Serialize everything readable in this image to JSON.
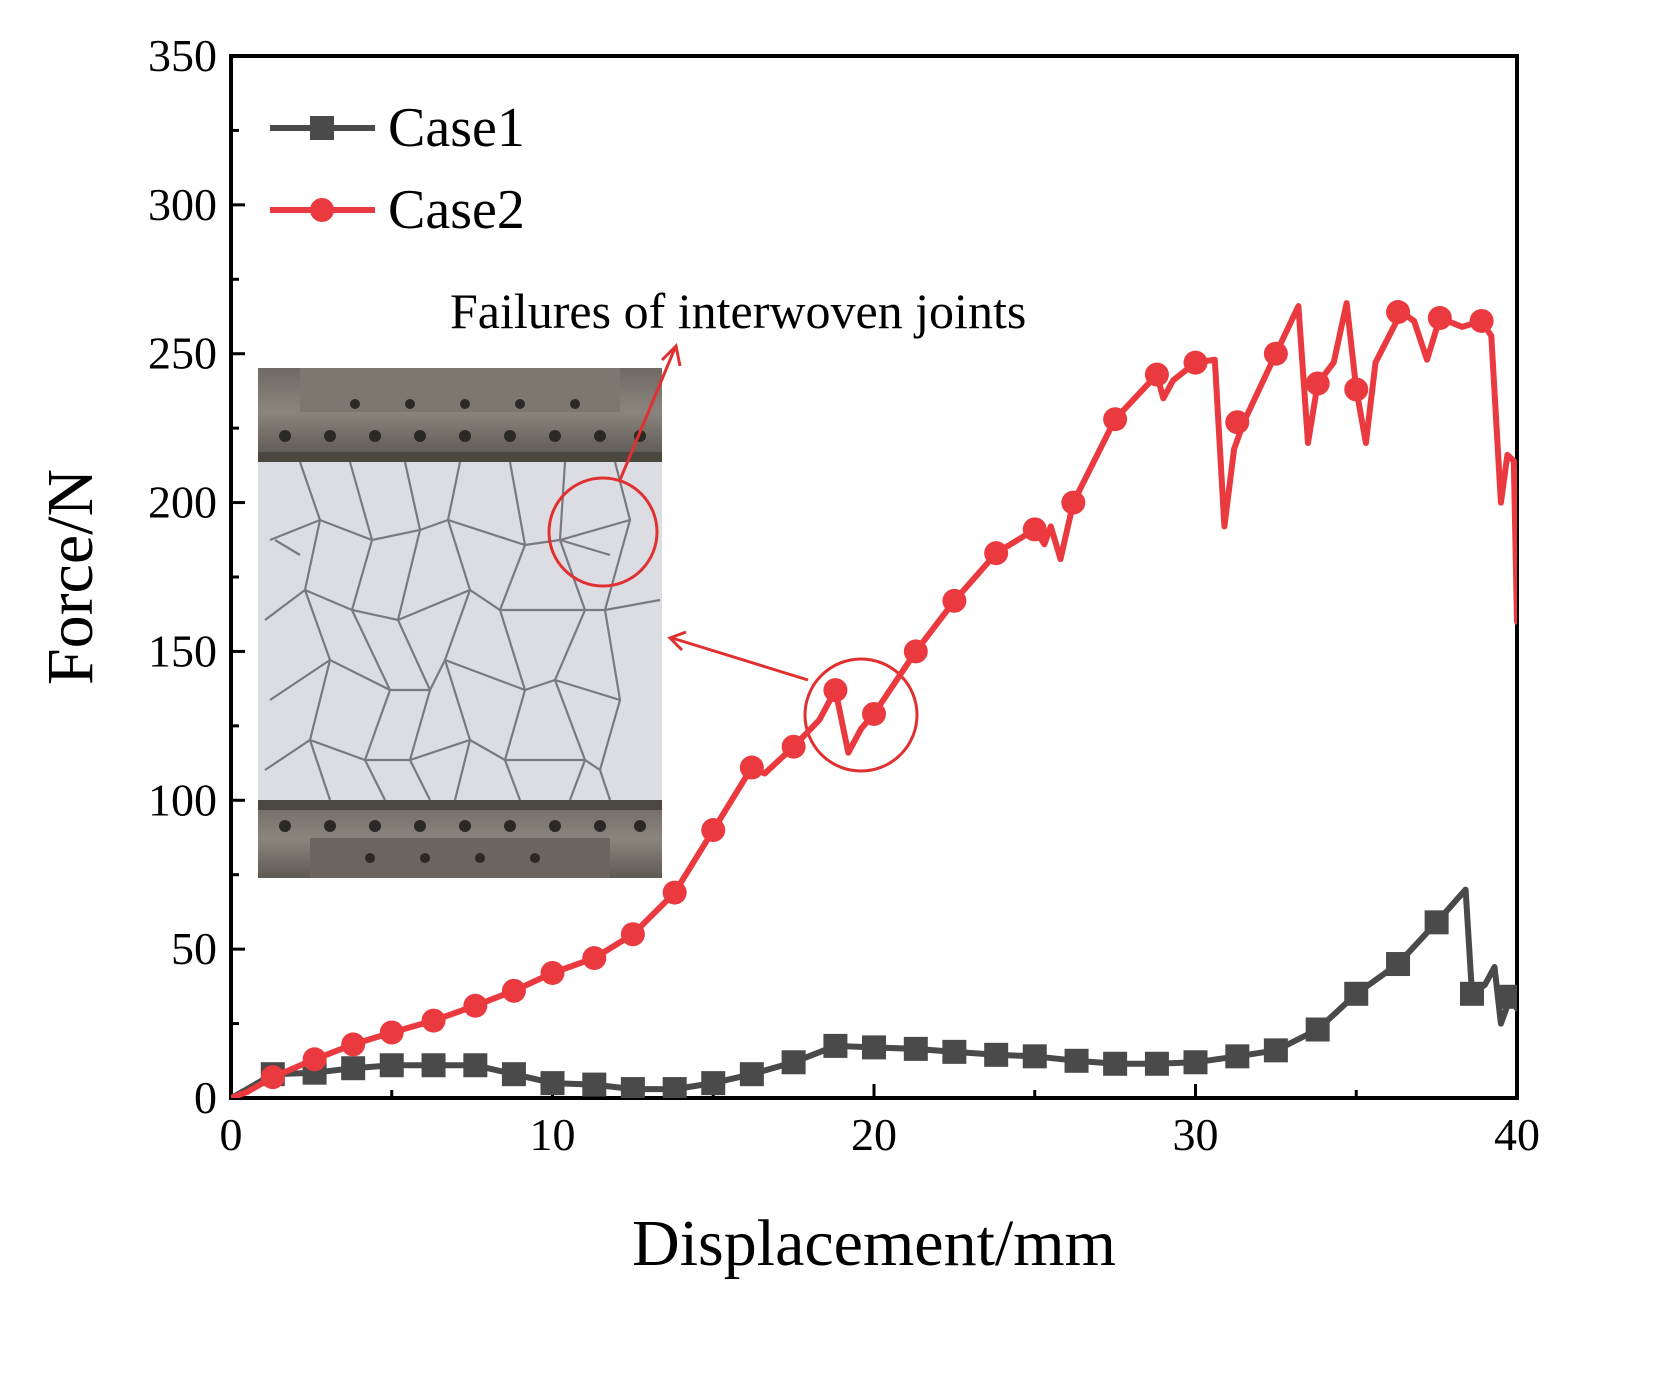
{
  "chart_data": {
    "type": "line",
    "xlabel": "Displacement/mm",
    "ylabel": "Force/N",
    "xlim": [
      0,
      40
    ],
    "ylim": [
      0,
      350
    ],
    "xticks": [
      0,
      10,
      20,
      30,
      40
    ],
    "yticks": [
      0,
      50,
      100,
      150,
      200,
      250,
      300,
      350
    ],
    "legend_position": "top-left",
    "annotation": "Failures of  interwoven joints",
    "colors": {
      "case1": "#4a4a4a",
      "case2": "#ea3a3f",
      "annotation": "#e03030"
    },
    "series": [
      {
        "name": "Case1",
        "marker": "square",
        "points": [
          [
            0,
            0
          ],
          [
            0.5,
            3
          ],
          [
            1.3,
            8
          ],
          [
            2.6,
            8.5
          ],
          [
            3.8,
            10
          ],
          [
            5,
            11
          ],
          [
            6.3,
            11
          ],
          [
            7.6,
            11
          ],
          [
            8.8,
            8
          ],
          [
            10,
            5
          ],
          [
            11.3,
            4.5
          ],
          [
            12.5,
            3
          ],
          [
            13.8,
            3
          ],
          [
            15,
            5
          ],
          [
            16.2,
            8
          ],
          [
            17.5,
            12
          ],
          [
            18.8,
            17.5
          ],
          [
            20,
            17
          ],
          [
            21.3,
            16.5
          ],
          [
            22.5,
            15.5
          ],
          [
            23.8,
            14.5
          ],
          [
            25,
            14
          ],
          [
            26.3,
            12.5
          ],
          [
            27.5,
            11.5
          ],
          [
            28.8,
            11.5
          ],
          [
            30,
            12
          ],
          [
            31.3,
            14
          ],
          [
            32.5,
            16
          ],
          [
            33.8,
            23
          ],
          [
            35,
            35
          ],
          [
            36.3,
            45
          ],
          [
            37.5,
            59
          ],
          [
            38.4,
            70
          ],
          [
            38.6,
            35
          ],
          [
            39.0,
            38
          ],
          [
            39.3,
            44
          ],
          [
            39.5,
            25
          ],
          [
            39.8,
            34
          ],
          [
            40,
            30
          ]
        ],
        "markers": [
          [
            1.3,
            8
          ],
          [
            2.6,
            8.5
          ],
          [
            3.8,
            10
          ],
          [
            5,
            11
          ],
          [
            6.3,
            11
          ],
          [
            7.6,
            11
          ],
          [
            8.8,
            8
          ],
          [
            10,
            5
          ],
          [
            11.3,
            4.5
          ],
          [
            12.5,
            3
          ],
          [
            13.8,
            3
          ],
          [
            15,
            5
          ],
          [
            16.2,
            8
          ],
          [
            17.5,
            12
          ],
          [
            18.8,
            17.5
          ],
          [
            20,
            17
          ],
          [
            21.3,
            16.5
          ],
          [
            22.5,
            15.5
          ],
          [
            23.8,
            14.5
          ],
          [
            25,
            14
          ],
          [
            26.3,
            12.5
          ],
          [
            27.5,
            11.5
          ],
          [
            28.8,
            11.5
          ],
          [
            30,
            12
          ],
          [
            31.3,
            14
          ],
          [
            32.5,
            16
          ],
          [
            33.8,
            23
          ],
          [
            35,
            35
          ],
          [
            36.3,
            45
          ],
          [
            37.5,
            59
          ],
          [
            38.6,
            35
          ],
          [
            39.8,
            34
          ]
        ]
      },
      {
        "name": "Case2",
        "marker": "circle",
        "points": [
          [
            0,
            0
          ],
          [
            0.5,
            2
          ],
          [
            1.3,
            7
          ],
          [
            2.6,
            13
          ],
          [
            3.8,
            18
          ],
          [
            5,
            22
          ],
          [
            6.3,
            26
          ],
          [
            7.6,
            31
          ],
          [
            8.8,
            36
          ],
          [
            10,
            42
          ],
          [
            11.3,
            47
          ],
          [
            12.5,
            55
          ],
          [
            13.8,
            69
          ],
          [
            15,
            90
          ],
          [
            16.2,
            111
          ],
          [
            16.6,
            109
          ],
          [
            17.5,
            118
          ],
          [
            18.3,
            127
          ],
          [
            18.8,
            137
          ],
          [
            19.2,
            116
          ],
          [
            19.6,
            124
          ],
          [
            20,
            129
          ],
          [
            21.3,
            150
          ],
          [
            22.5,
            167
          ],
          [
            23.8,
            183
          ],
          [
            25,
            191
          ],
          [
            25.3,
            186
          ],
          [
            25.5,
            192
          ],
          [
            25.8,
            181
          ],
          [
            26.2,
            200
          ],
          [
            27.5,
            228
          ],
          [
            28.8,
            243
          ],
          [
            29.0,
            235
          ],
          [
            29.3,
            241
          ],
          [
            30,
            247
          ],
          [
            30.6,
            248
          ],
          [
            30.9,
            192
          ],
          [
            31.2,
            218
          ],
          [
            31.5,
            227
          ],
          [
            32.5,
            250
          ],
          [
            33.2,
            266
          ],
          [
            33.5,
            220
          ],
          [
            33.8,
            240
          ],
          [
            34.3,
            247
          ],
          [
            34.7,
            267
          ],
          [
            35,
            238
          ],
          [
            35.3,
            220
          ],
          [
            35.6,
            247
          ],
          [
            36.4,
            264
          ],
          [
            36.8,
            261
          ],
          [
            37.2,
            248
          ],
          [
            37.6,
            262
          ],
          [
            38.3,
            259
          ],
          [
            38.9,
            261
          ],
          [
            39.2,
            256
          ],
          [
            39.5,
            200
          ],
          [
            39.7,
            216
          ],
          [
            39.9,
            214
          ],
          [
            40,
            160
          ]
        ],
        "markers": [
          [
            1.3,
            7
          ],
          [
            2.6,
            13
          ],
          [
            3.8,
            18
          ],
          [
            5,
            22
          ],
          [
            6.3,
            26
          ],
          [
            7.6,
            31
          ],
          [
            8.8,
            36
          ],
          [
            10,
            42
          ],
          [
            11.3,
            47
          ],
          [
            12.5,
            55
          ],
          [
            13.8,
            69
          ],
          [
            15,
            90
          ],
          [
            16.2,
            111
          ],
          [
            17.5,
            118
          ],
          [
            18.8,
            137
          ],
          [
            20,
            129
          ],
          [
            21.3,
            150
          ],
          [
            22.5,
            167
          ],
          [
            23.8,
            183
          ],
          [
            25,
            191
          ],
          [
            26.2,
            200
          ],
          [
            27.5,
            228
          ],
          [
            28.8,
            243
          ],
          [
            30,
            247
          ],
          [
            31.3,
            227
          ],
          [
            32.5,
            250
          ],
          [
            33.8,
            240
          ],
          [
            35,
            238
          ],
          [
            36.3,
            264
          ],
          [
            37.6,
            262
          ],
          [
            38.9,
            261
          ]
        ]
      }
    ]
  }
}
